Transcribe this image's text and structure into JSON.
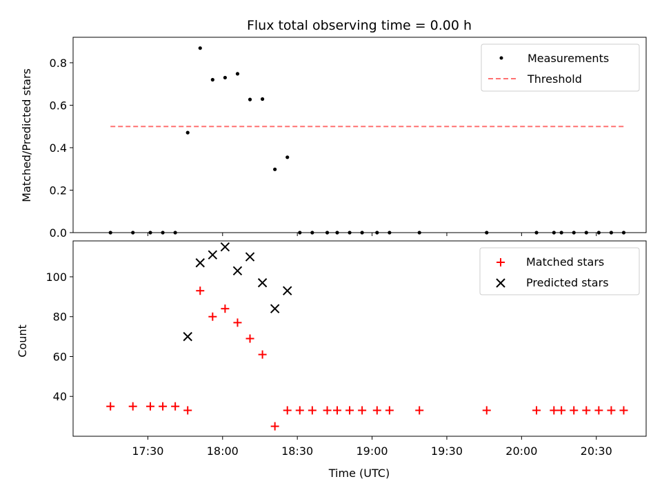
{
  "chart_data": [
    {
      "type": "scatter",
      "title": "Flux total observing time = 0.00 h",
      "xlabel": "",
      "ylabel": "Matched/Predicted stars",
      "x_axis": "time (UTC)",
      "xlim": [
        "17:00",
        "20:50"
      ],
      "ylim": [
        0,
        0.92
      ],
      "yticks": [
        0.0,
        0.2,
        0.4,
        0.6,
        0.8
      ],
      "ytick_labels": [
        "0.0",
        "0.2",
        "0.4",
        "0.6",
        "0.8"
      ],
      "legend_position": "top-right",
      "series": [
        {
          "name": "Measurements",
          "marker": "dot",
          "color": "#000000",
          "points": [
            {
              "x": "17:15",
              "y": 0.0
            },
            {
              "x": "17:24",
              "y": 0.0
            },
            {
              "x": "17:31",
              "y": 0.0
            },
            {
              "x": "17:36",
              "y": 0.0
            },
            {
              "x": "17:41",
              "y": 0.0
            },
            {
              "x": "17:46",
              "y": 0.471
            },
            {
              "x": "17:51",
              "y": 0.869
            },
            {
              "x": "17:56",
              "y": 0.72
            },
            {
              "x": "18:01",
              "y": 0.73
            },
            {
              "x": "18:06",
              "y": 0.748
            },
            {
              "x": "18:11",
              "y": 0.627
            },
            {
              "x": "18:16",
              "y": 0.629
            },
            {
              "x": "18:21",
              "y": 0.298
            },
            {
              "x": "18:26",
              "y": 0.355
            },
            {
              "x": "18:31",
              "y": 0.0
            },
            {
              "x": "18:36",
              "y": 0.0
            },
            {
              "x": "18:42",
              "y": 0.0
            },
            {
              "x": "18:46",
              "y": 0.0
            },
            {
              "x": "18:51",
              "y": 0.0
            },
            {
              "x": "18:56",
              "y": 0.0
            },
            {
              "x": "19:02",
              "y": 0.0
            },
            {
              "x": "19:07",
              "y": 0.0
            },
            {
              "x": "19:19",
              "y": 0.0
            },
            {
              "x": "19:46",
              "y": 0.0
            },
            {
              "x": "20:06",
              "y": 0.0
            },
            {
              "x": "20:13",
              "y": 0.0
            },
            {
              "x": "20:16",
              "y": 0.0
            },
            {
              "x": "20:21",
              "y": 0.0
            },
            {
              "x": "20:26",
              "y": 0.0
            },
            {
              "x": "20:31",
              "y": 0.0
            },
            {
              "x": "20:36",
              "y": 0.0
            },
            {
              "x": "20:41",
              "y": 0.0
            }
          ]
        },
        {
          "name": "Threshold",
          "style": "dashed-line",
          "color": "#ff7070",
          "points": [
            {
              "x": "17:15",
              "y": 0.5
            },
            {
              "x": "20:41",
              "y": 0.5
            }
          ]
        }
      ]
    },
    {
      "type": "scatter",
      "title": "",
      "xlabel": "Time (UTC)",
      "ylabel": "Count",
      "x_axis": "time (UTC)",
      "xlim": [
        "17:00",
        "20:50"
      ],
      "ylim": [
        20,
        118
      ],
      "xticks": [
        "17:30",
        "18:00",
        "18:30",
        "19:00",
        "19:30",
        "20:00",
        "20:30"
      ],
      "xtick_labels": [
        "17:30",
        "18:00",
        "18:30",
        "19:00",
        "19:30",
        "20:00",
        "20:30"
      ],
      "yticks": [
        40,
        60,
        80,
        100
      ],
      "ytick_labels": [
        "40",
        "60",
        "80",
        "100"
      ],
      "legend_position": "top-right",
      "series": [
        {
          "name": "Matched stars",
          "marker": "plus",
          "color": "#ff0000",
          "points": [
            {
              "x": "17:15",
              "y": 35
            },
            {
              "x": "17:24",
              "y": 35
            },
            {
              "x": "17:31",
              "y": 35
            },
            {
              "x": "17:36",
              "y": 35
            },
            {
              "x": "17:41",
              "y": 35
            },
            {
              "x": "17:46",
              "y": 33
            },
            {
              "x": "17:51",
              "y": 93
            },
            {
              "x": "17:56",
              "y": 80
            },
            {
              "x": "18:01",
              "y": 84
            },
            {
              "x": "18:06",
              "y": 77
            },
            {
              "x": "18:11",
              "y": 69
            },
            {
              "x": "18:16",
              "y": 61
            },
            {
              "x": "18:21",
              "y": 25
            },
            {
              "x": "18:26",
              "y": 33
            },
            {
              "x": "18:31",
              "y": 33
            },
            {
              "x": "18:36",
              "y": 33
            },
            {
              "x": "18:42",
              "y": 33
            },
            {
              "x": "18:46",
              "y": 33
            },
            {
              "x": "18:51",
              "y": 33
            },
            {
              "x": "18:56",
              "y": 33
            },
            {
              "x": "19:02",
              "y": 33
            },
            {
              "x": "19:07",
              "y": 33
            },
            {
              "x": "19:19",
              "y": 33
            },
            {
              "x": "19:46",
              "y": 33
            },
            {
              "x": "20:06",
              "y": 33
            },
            {
              "x": "20:13",
              "y": 33
            },
            {
              "x": "20:16",
              "y": 33
            },
            {
              "x": "20:21",
              "y": 33
            },
            {
              "x": "20:26",
              "y": 33
            },
            {
              "x": "20:31",
              "y": 33
            },
            {
              "x": "20:36",
              "y": 33
            },
            {
              "x": "20:41",
              "y": 33
            }
          ]
        },
        {
          "name": "Predicted stars",
          "marker": "x",
          "color": "#000000",
          "points": [
            {
              "x": "17:46",
              "y": 70
            },
            {
              "x": "17:51",
              "y": 107
            },
            {
              "x": "17:56",
              "y": 111
            },
            {
              "x": "18:01",
              "y": 115
            },
            {
              "x": "18:06",
              "y": 103
            },
            {
              "x": "18:11",
              "y": 110
            },
            {
              "x": "18:16",
              "y": 97
            },
            {
              "x": "18:21",
              "y": 84
            },
            {
              "x": "18:26",
              "y": 93
            }
          ]
        }
      ]
    }
  ]
}
